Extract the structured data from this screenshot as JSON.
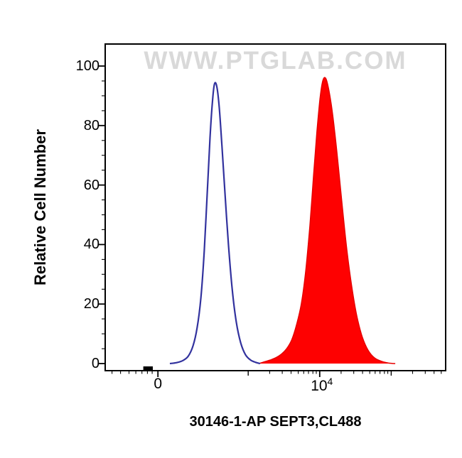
{
  "labels": {
    "watermark": "WWW.PTGLAB.COM",
    "caption": "30146-1-AP SEPT3,CL488",
    "y_axis": "Relative Cell Number",
    "x_zero": "0",
    "x_log_base": "10",
    "x_log_exp": "4"
  },
  "colors": {
    "axis": "#000000",
    "watermark": "#d9d9d9",
    "control_line": "#32329e",
    "sample_fill": "#fe0101",
    "sample_line": "#e60000"
  },
  "chart_data": {
    "type": "area",
    "subtype": "flow-cytometry-overlay-histogram",
    "title": "",
    "xlabel": "",
    "ylabel": "Relative Cell Number",
    "ylim": [
      0,
      100
    ],
    "y_ticks": [
      0,
      20,
      40,
      60,
      80,
      100
    ],
    "x_scale": "biexponential-log, positions stored normalized 0-1 across plot width",
    "x_tick_labels": [
      "0",
      "10^4"
    ],
    "x_ticks": {
      "major": [
        0.155,
        0.63
      ],
      "medium": [
        0.42,
        0.84
      ],
      "minor": [
        0.02,
        0.045,
        0.07,
        0.09,
        0.108,
        0.124,
        0.138,
        0.483,
        0.52,
        0.546,
        0.567,
        0.583,
        0.597,
        0.61,
        0.62,
        0.693,
        0.73,
        0.756,
        0.777,
        0.793,
        0.807,
        0.82,
        0.83,
        0.903,
        0.94,
        0.966,
        0.987
      ],
      "axis_blip": {
        "x": 0.112,
        "w": 0.028
      }
    },
    "series": [
      {
        "id": "sample",
        "name": "SEPT3, CL488 (red filled histogram)",
        "style": "filled",
        "line_color": "#e60000",
        "fill_color": "#fe0101",
        "line_width": 1.5,
        "peak_x_norm": 0.647,
        "peak_y": 96,
        "points": [
          [
            0.452,
            0
          ],
          [
            0.468,
            0.6
          ],
          [
            0.485,
            1.2
          ],
          [
            0.502,
            2
          ],
          [
            0.518,
            3.2
          ],
          [
            0.533,
            5
          ],
          [
            0.548,
            8
          ],
          [
            0.562,
            13
          ],
          [
            0.576,
            20
          ],
          [
            0.589,
            31
          ],
          [
            0.601,
            46
          ],
          [
            0.612,
            63
          ],
          [
            0.622,
            78
          ],
          [
            0.631,
            89
          ],
          [
            0.639,
            95
          ],
          [
            0.647,
            96
          ],
          [
            0.655,
            93
          ],
          [
            0.664,
            87
          ],
          [
            0.674,
            78
          ],
          [
            0.685,
            66
          ],
          [
            0.697,
            52
          ],
          [
            0.71,
            38
          ],
          [
            0.724,
            26
          ],
          [
            0.739,
            16
          ],
          [
            0.755,
            9
          ],
          [
            0.772,
            4.5
          ],
          [
            0.79,
            2
          ],
          [
            0.81,
            0.8
          ],
          [
            0.832,
            0.2
          ],
          [
            0.852,
            0
          ]
        ]
      },
      {
        "id": "control",
        "name": "Control (blue open histogram)",
        "style": "open",
        "line_color": "#32329e",
        "fill_color": "none",
        "line_width": 2.2,
        "peak_x_norm": 0.321,
        "peak_y": 94,
        "points": [
          [
            0.19,
            0
          ],
          [
            0.21,
            0.3
          ],
          [
            0.228,
            1
          ],
          [
            0.244,
            2.5
          ],
          [
            0.258,
            6
          ],
          [
            0.27,
            12
          ],
          [
            0.281,
            22
          ],
          [
            0.291,
            38
          ],
          [
            0.3,
            58
          ],
          [
            0.308,
            76
          ],
          [
            0.315,
            88
          ],
          [
            0.321,
            94
          ],
          [
            0.328,
            93
          ],
          [
            0.335,
            86
          ],
          [
            0.343,
            73
          ],
          [
            0.352,
            57
          ],
          [
            0.362,
            40
          ],
          [
            0.373,
            25
          ],
          [
            0.385,
            14
          ],
          [
            0.398,
            7
          ],
          [
            0.412,
            3
          ],
          [
            0.427,
            1.2
          ],
          [
            0.442,
            0.4
          ],
          [
            0.455,
            0
          ]
        ]
      }
    ]
  }
}
